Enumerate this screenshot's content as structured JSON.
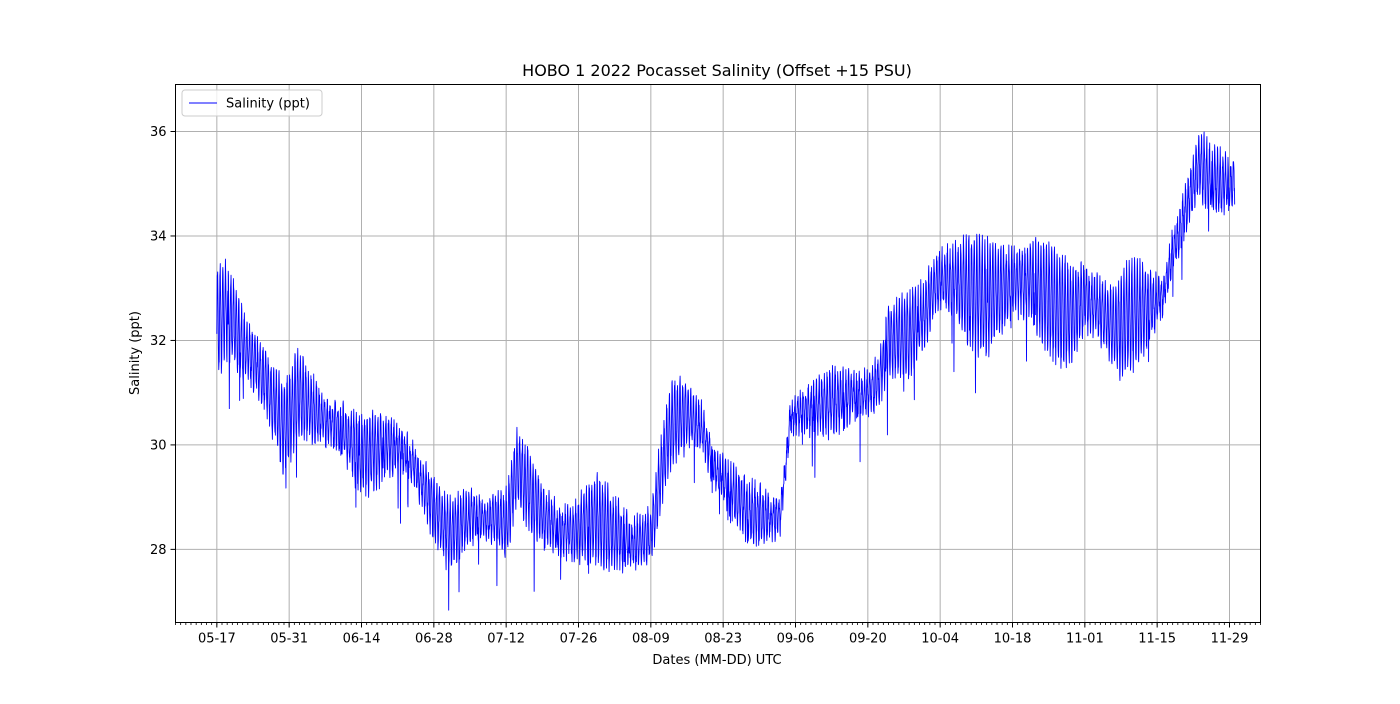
{
  "chart_data": {
    "type": "line",
    "title": "HOBO 1 2022 Pocasset Salinity (Offset +15 PSU)",
    "xlabel": "Dates (MM-DD) UTC",
    "ylabel": "Salinity (ppt)",
    "xlim": [
      "2022-05-09",
      "2022-12-05"
    ],
    "ylim": [
      26.6,
      36.9
    ],
    "grid": true,
    "legend_position": "upper-left",
    "line_color": "#0000ff",
    "x_ticks": [
      "05-17",
      "05-31",
      "06-14",
      "06-28",
      "07-12",
      "07-26",
      "08-09",
      "08-23",
      "09-06",
      "09-20",
      "10-04",
      "10-18",
      "11-01",
      "11-15",
      "11-29"
    ],
    "x_tick_dates": [
      "2022-05-17",
      "2022-05-31",
      "2022-06-14",
      "2022-06-28",
      "2022-07-12",
      "2022-07-26",
      "2022-08-09",
      "2022-08-23",
      "2022-09-06",
      "2022-09-20",
      "2022-10-04",
      "2022-10-18",
      "2022-11-01",
      "2022-11-15",
      "2022-11-29"
    ],
    "y_ticks": [
      28,
      30,
      32,
      34,
      36
    ],
    "series": [
      {
        "name": "Salinity (ppt)",
        "baseline": {
          "x": [
            "2022-05-17",
            "2022-05-19",
            "2022-05-22",
            "2022-05-26",
            "2022-05-30",
            "2022-06-02",
            "2022-06-05",
            "2022-06-10",
            "2022-06-14",
            "2022-06-19",
            "2022-06-23",
            "2022-06-26",
            "2022-06-29",
            "2022-07-01",
            "2022-07-05",
            "2022-07-09",
            "2022-07-12",
            "2022-07-13",
            "2022-07-14",
            "2022-07-15",
            "2022-07-18",
            "2022-07-22",
            "2022-07-25",
            "2022-07-29",
            "2022-08-02",
            "2022-08-06",
            "2022-08-09",
            "2022-08-11",
            "2022-08-13",
            "2022-08-16",
            "2022-08-19",
            "2022-08-21",
            "2022-08-24",
            "2022-08-28",
            "2022-09-01",
            "2022-09-03",
            "2022-09-04",
            "2022-09-05",
            "2022-09-08",
            "2022-09-12",
            "2022-09-16",
            "2022-09-20",
            "2022-09-22",
            "2022-09-24",
            "2022-09-28",
            "2022-10-01",
            "2022-10-03",
            "2022-10-05",
            "2022-10-09",
            "2022-10-13",
            "2022-10-18",
            "2022-10-22",
            "2022-10-26",
            "2022-10-29",
            "2022-11-01",
            "2022-11-04",
            "2022-11-07",
            "2022-11-10",
            "2022-11-13",
            "2022-11-16",
            "2022-11-18",
            "2022-11-20",
            "2022-11-22",
            "2022-11-23",
            "2022-11-25",
            "2022-11-28",
            "2022-11-30"
          ],
          "y": [
            32.3,
            32.6,
            31.9,
            31.3,
            30.3,
            31.0,
            30.6,
            30.3,
            29.8,
            30.0,
            29.8,
            29.2,
            28.6,
            28.3,
            28.6,
            28.6,
            28.5,
            29.0,
            29.6,
            29.4,
            28.8,
            28.4,
            28.3,
            28.6,
            28.3,
            28.1,
            28.3,
            29.5,
            30.4,
            30.6,
            30.3,
            29.6,
            29.2,
            28.7,
            28.6,
            28.6,
            29.5,
            30.5,
            30.7,
            30.8,
            30.9,
            31.0,
            31.2,
            32.0,
            32.1,
            32.5,
            33.1,
            33.2,
            33.0,
            32.8,
            33.1,
            33.1,
            32.7,
            32.5,
            32.8,
            32.6,
            32.2,
            32.5,
            32.6,
            32.8,
            33.7,
            34.3,
            35.0,
            35.4,
            35.1,
            35.0,
            35.0
          ]
        },
        "tidal_amplitude": {
          "x": [
            "2022-05-17",
            "2022-06-02",
            "2022-06-28",
            "2022-07-12",
            "2022-08-06",
            "2022-09-01",
            "2022-09-06",
            "2022-10-01",
            "2022-10-09",
            "2022-11-10",
            "2022-11-16",
            "2022-11-21",
            "2022-11-30"
          ],
          "y": [
            1.0,
            0.8,
            0.6,
            0.7,
            0.8,
            0.5,
            0.5,
            0.8,
            1.1,
            1.0,
            0.6,
            0.6,
            0.6
          ]
        }
      }
    ]
  }
}
